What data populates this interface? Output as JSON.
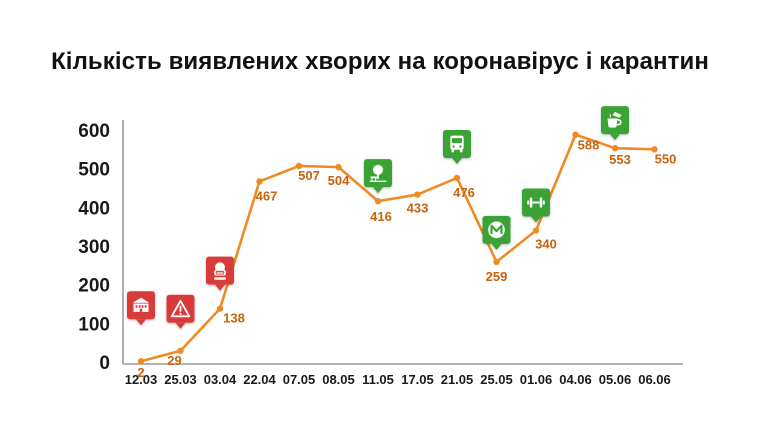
{
  "chart_data": {
    "type": "line",
    "title": "Кількість виявлених хворих на коронавірус і карантин",
    "xlabel": "",
    "ylabel": "",
    "categories": [
      "12.03",
      "25.03",
      "03.04",
      "22.04",
      "07.05",
      "08.05",
      "11.05",
      "17.05",
      "21.05",
      "25.05",
      "01.06",
      "04.06",
      "05.06",
      "06.06"
    ],
    "series": [
      {
        "name": "Кількість виявлених хворих",
        "values": [
          2,
          29,
          138,
          467,
          507,
          504,
          416,
          433,
          476,
          259,
          340,
          588,
          553,
          550
        ]
      }
    ],
    "data_labels": [
      "2",
      "29",
      "138",
      "467",
      "507",
      "504",
      "416",
      "433",
      "476",
      "259",
      "340",
      "588",
      "553",
      "550"
    ],
    "ylim": [
      0,
      600
    ],
    "yticks": [
      "0",
      "100",
      "200",
      "300",
      "400",
      "500",
      "600"
    ],
    "grid": false,
    "markers": [
      {
        "category": "12.03",
        "icon": "school-building-icon",
        "color": "#d93a3a"
      },
      {
        "category": "25.03",
        "icon": "warning-triangle-icon",
        "color": "#d93a3a"
      },
      {
        "category": "03.04",
        "icon": "face-mask-icon",
        "color": "#d93a3a"
      },
      {
        "category": "11.05",
        "icon": "park-tree-icon",
        "color": "#3aa335"
      },
      {
        "category": "21.05",
        "icon": "bus-icon",
        "color": "#3aa335"
      },
      {
        "category": "25.05",
        "icon": "metro-icon",
        "color": "#3aa335"
      },
      {
        "category": "01.06",
        "icon": "dumbbell-icon",
        "color": "#3aa335"
      },
      {
        "category": "05.06",
        "icon": "coffee-cup-icon",
        "color": "#3aa335"
      }
    ],
    "colors": {
      "line": "#f08a24",
      "label": "#c9620a",
      "axis": "#9a9a9a"
    }
  }
}
